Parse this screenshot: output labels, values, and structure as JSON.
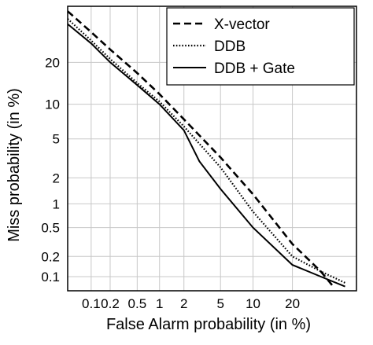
{
  "chart_data": {
    "type": "line",
    "title": "",
    "xlabel": "False Alarm probability  (in %)",
    "ylabel": "Miss probability  (in %)",
    "xscale": "probit",
    "yscale": "probit",
    "xlim": [
      0.04,
      45
    ],
    "ylim": [
      0.06,
      40
    ],
    "x_ticks": [
      {
        "value": 0.1,
        "label": "0.1"
      },
      {
        "value": 0.2,
        "label": "0.2"
      },
      {
        "value": 0.5,
        "label": "0.5"
      },
      {
        "value": 1,
        "label": "1"
      },
      {
        "value": 2,
        "label": "2"
      },
      {
        "value": 5,
        "label": "5"
      },
      {
        "value": 10,
        "label": "10"
      },
      {
        "value": 20,
        "label": "20"
      }
    ],
    "y_ticks": [
      {
        "value": 0.1,
        "label": "0.1"
      },
      {
        "value": 0.2,
        "label": "0.2"
      },
      {
        "value": 0.5,
        "label": "0.5"
      },
      {
        "value": 1,
        "label": "1"
      },
      {
        "value": 2,
        "label": "2"
      },
      {
        "value": 5,
        "label": "5"
      },
      {
        "value": 10,
        "label": "10"
      },
      {
        "value": 20,
        "label": "20"
      }
    ],
    "grid": true,
    "legend_position": "top-right",
    "series": [
      {
        "name": "X-vector",
        "style": "dashed",
        "color": "#000000",
        "points": [
          [
            0.04,
            38
          ],
          [
            0.1,
            30
          ],
          [
            0.2,
            24
          ],
          [
            0.5,
            17
          ],
          [
            1,
            12
          ],
          [
            2,
            7.5
          ],
          [
            5,
            3.3
          ],
          [
            10,
            1.3
          ],
          [
            20,
            0.3
          ],
          [
            30,
            0.12
          ],
          [
            35,
            0.07
          ]
        ]
      },
      {
        "name": "DDB",
        "style": "dotted",
        "color": "#000000",
        "points": [
          [
            0.04,
            35
          ],
          [
            0.1,
            27
          ],
          [
            0.2,
            21
          ],
          [
            0.5,
            14.5
          ],
          [
            1,
            10.5
          ],
          [
            2,
            6.5
          ],
          [
            5,
            2.6
          ],
          [
            10,
            0.8
          ],
          [
            20,
            0.2
          ],
          [
            30,
            0.12
          ],
          [
            40,
            0.08
          ]
        ]
      },
      {
        "name": "DDB + Gate",
        "style": "solid",
        "color": "#000000",
        "points": [
          [
            0.04,
            33
          ],
          [
            0.1,
            26
          ],
          [
            0.2,
            20
          ],
          [
            0.5,
            14
          ],
          [
            1,
            10
          ],
          [
            2,
            6
          ],
          [
            3,
            3
          ],
          [
            5,
            1.5
          ],
          [
            10,
            0.5
          ],
          [
            20,
            0.15
          ],
          [
            30,
            0.1
          ],
          [
            40,
            0.07
          ]
        ]
      }
    ]
  }
}
